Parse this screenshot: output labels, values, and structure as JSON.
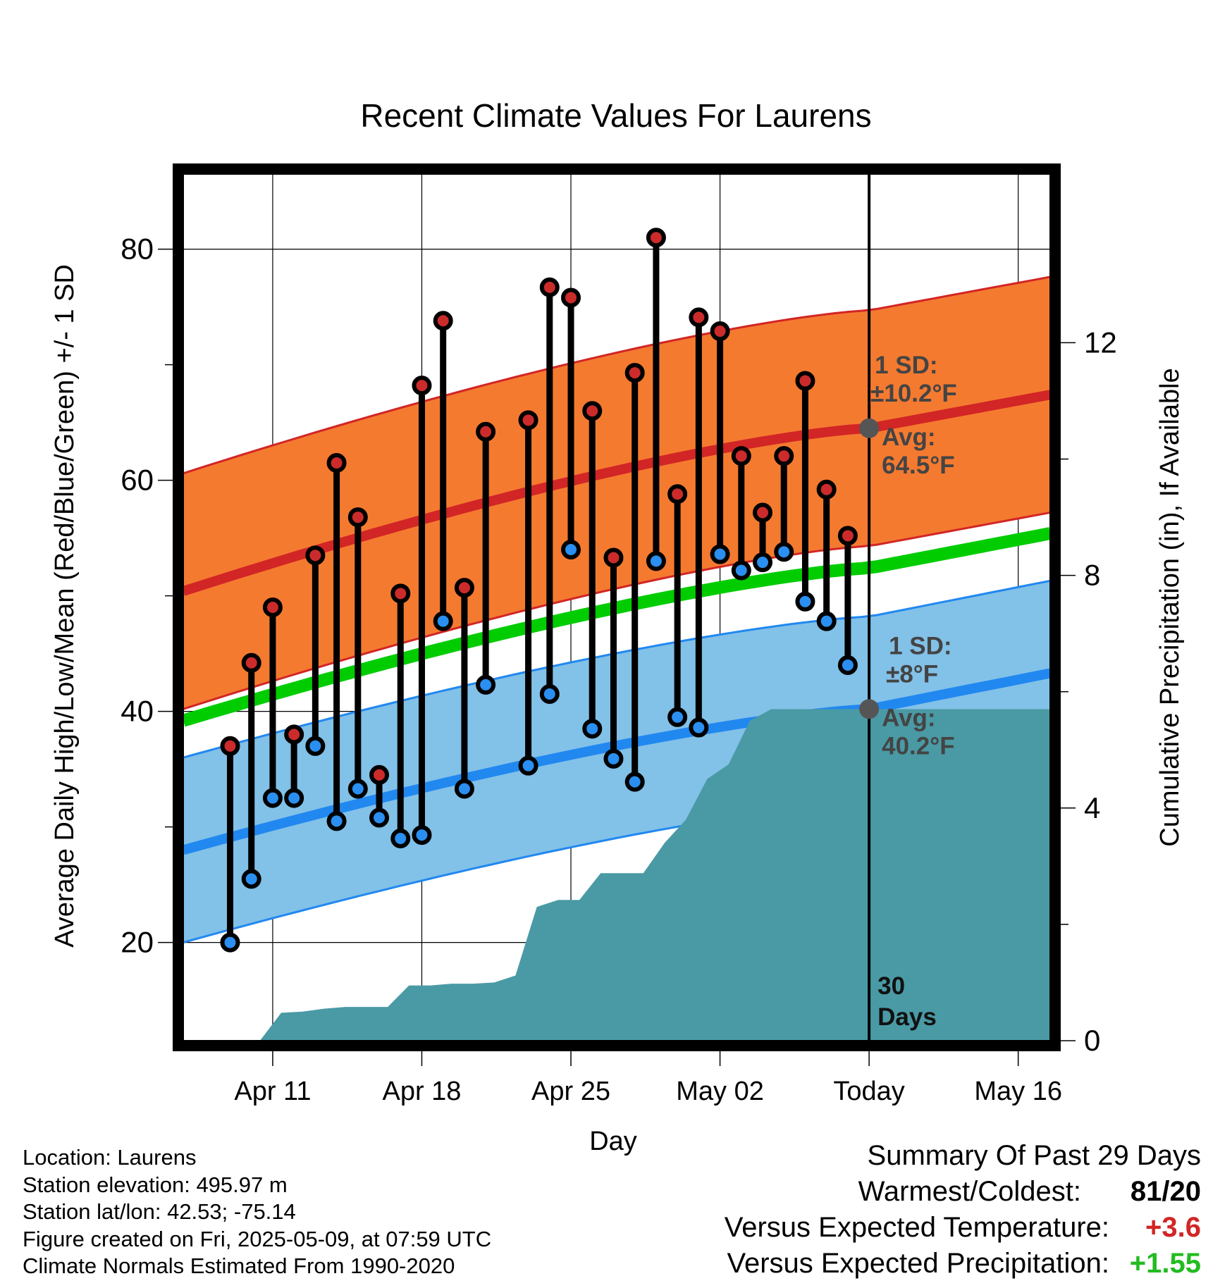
{
  "chart_data": {
    "type": "line",
    "title": "Recent Climate Values For Laurens",
    "xlabel": "Day",
    "ylabel": "Average Daily High/Low/Mean (Red/Blue/Green) +/- 1 SD",
    "y2label": "Cumulative Precipitation (in), If Available",
    "x_ticks": [
      "Apr 11",
      "Apr 18",
      "Apr 25",
      "May 02",
      "Today",
      "May 16"
    ],
    "x_range_days": [
      -32.2,
      8.5
    ],
    "today_label": "30\nDays",
    "ylim": [
      11.5,
      86.5
    ],
    "y_ticks": [
      20,
      40,
      60,
      80
    ],
    "y2lim": [
      0,
      14.9
    ],
    "y2_ticks": [
      0,
      4,
      8,
      12
    ],
    "grid": true,
    "day_offsets": [
      -30,
      -29,
      -28,
      -27,
      -26,
      -25,
      -24,
      -23,
      -22,
      -21,
      -20,
      -19,
      -18,
      -16,
      -15,
      -14,
      -13,
      -12,
      -11,
      -10,
      -9,
      -8,
      -7,
      -6,
      -5,
      -4,
      -3,
      -2,
      -1
    ],
    "highs": [
      37,
      44.2,
      49,
      38,
      53.5,
      61.5,
      56.8,
      34.5,
      50.2,
      68.2,
      73.8,
      50.7,
      64.2,
      65.2,
      76.7,
      75.8,
      66,
      53.3,
      69.3,
      81,
      58.8,
      74.1,
      72.9,
      62.1,
      57.2,
      62.1,
      68.6,
      59.2,
      55.2
    ],
    "lows": [
      20,
      25.5,
      32.5,
      32.5,
      37,
      30.5,
      33.3,
      30.8,
      29,
      29.3,
      47.8,
      33.3,
      42.3,
      35.3,
      41.5,
      54,
      38.5,
      35.9,
      33.9,
      53,
      39.5,
      38.6,
      53.6,
      52.2,
      52.9,
      53.8,
      49.5,
      47.8,
      44
    ],
    "normal_high": {
      "label_sd": "1 SD:",
      "sd_value": "±10.2°F",
      "label_avg": "Avg:",
      "avg_value": "64.5°F",
      "start": 50.4,
      "today": 64.5,
      "end": 67.4,
      "sd": 10.2
    },
    "normal_low": {
      "label_sd": "1 SD:",
      "sd_value": "±8°F",
      "label_avg": "Avg:",
      "avg_value": "40.2°F",
      "start": 28,
      "today": 40.2,
      "end": 43.3,
      "sd": 8
    },
    "normal_mean": {
      "start": 39.2,
      "today": 52.4,
      "end": 55.4
    },
    "precip_days": [
      -32.2,
      -28.6,
      -27.6,
      -26.6,
      -25.6,
      -24.6,
      -23.6,
      -22.6,
      -21.6,
      -20.6,
      -19.6,
      -18.6,
      -17.6,
      -16.6,
      -15.6,
      -14.6,
      -13.6,
      -12.6,
      -11.6,
      -10.6,
      -9.6,
      -8.6,
      -7.6,
      -6.6,
      -5.6,
      -4.6,
      -3.6,
      -2.6,
      -1.6,
      -0.6,
      0,
      8.5
    ],
    "precip_values": [
      0,
      0,
      0.48,
      0.5,
      0.55,
      0.58,
      0.58,
      0.58,
      0.95,
      0.95,
      0.98,
      0.98,
      1,
      1.12,
      2.3,
      2.42,
      2.42,
      2.88,
      2.88,
      2.88,
      3.4,
      3.8,
      4.5,
      4.75,
      5.5,
      5.7,
      5.7,
      5.7,
      5.7,
      5.7,
      5.7,
      5.7
    ],
    "colors": {
      "high_band": "#f47a30",
      "high_line": "#d22525",
      "low_band": "#82c1e8",
      "low_line": "#2188f0",
      "mean_line": "#00cc00",
      "precip": "#4a9aa5",
      "high_dot": "#cc2b2b",
      "low_dot": "#2a8ff0",
      "avg_marker": "#555555"
    }
  },
  "footer": {
    "location": "Location: Laurens",
    "elevation": "Station elevation: 495.97 m",
    "latlon": "Station lat/lon: 42.53; -75.14",
    "created": "Figure created on Fri, 2025-05-09, at 07:59 UTC",
    "normals": "Climate Normals Estimated From 1990-2020"
  },
  "summary": {
    "title": "Summary Of Past 29 Days",
    "warm_label": "Warmest/Coldest:",
    "warm_high": "81",
    "warm_sep": "/",
    "warm_low": "20",
    "temp_label": "Versus Expected Temperature:",
    "temp_value": "+3.6",
    "temp_color": "#d22525",
    "precip_label": "Versus Expected Precipitation:",
    "precip_value": "+1.55",
    "precip_color": "#22bb22"
  }
}
